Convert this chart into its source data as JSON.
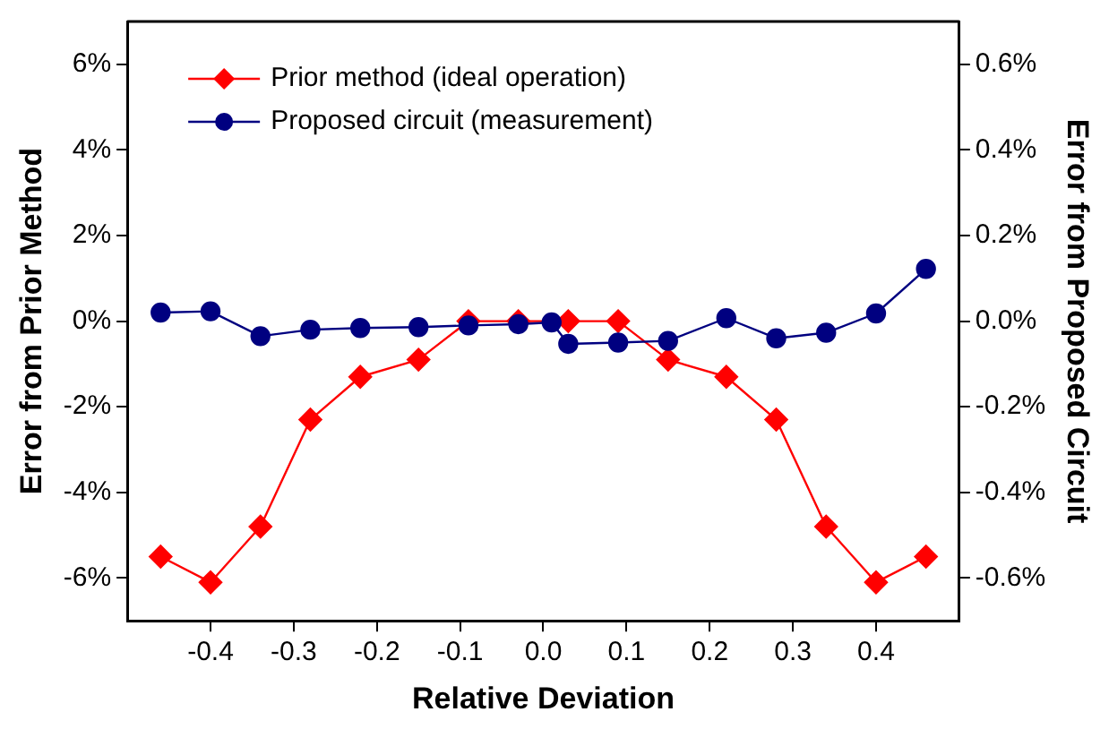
{
  "chart_data": {
    "type": "line",
    "xlabel": "Relative Deviation",
    "ylabel": "Error from Prior Method",
    "y2label": "Error from Proposed Circuit",
    "xlim": [
      -0.5,
      0.5
    ],
    "xticks": [
      -0.4,
      -0.3,
      -0.2,
      -0.1,
      {
        "value": 0,
        "label": "0.0"
      },
      0.1,
      0.2,
      0.3,
      0.4
    ],
    "ylim": [
      -7,
      7
    ],
    "yticks": [
      {
        "value": -6,
        "label": "-6%"
      },
      {
        "value": -4,
        "label": "-4%"
      },
      {
        "value": -2,
        "label": "-2%"
      },
      {
        "value": 0,
        "label": "0%"
      },
      {
        "value": 2,
        "label": "2%"
      },
      {
        "value": 4,
        "label": "4%"
      },
      {
        "value": 6,
        "label": "6%"
      }
    ],
    "y2lim": [
      -0.7,
      0.7
    ],
    "y2ticks": [
      {
        "value": -0.6,
        "label": "-0.6%"
      },
      {
        "value": -0.4,
        "label": "-0.4%"
      },
      {
        "value": -0.2,
        "label": "-0.2%"
      },
      {
        "value": 0,
        "label": "0.0%"
      },
      {
        "value": 0.2,
        "label": "0.2%"
      },
      {
        "value": 0.4,
        "label": "0.4%"
      },
      {
        "value": 0.6,
        "label": "0.6%"
      }
    ],
    "grid": false,
    "legend": "top left",
    "series": [
      {
        "name": "Prior method (ideal operation)",
        "color": "#ff0000",
        "marker": "diamond",
        "x": [
          -0.46,
          -0.4,
          -0.34,
          -0.28,
          -0.22,
          -0.15,
          -0.09,
          -0.03,
          0.03,
          0.09,
          0.15,
          0.22,
          0.28,
          0.34,
          0.4,
          0.46
        ],
        "values": [
          -5.5,
          -6.1,
          -4.8,
          -2.3,
          -1.3,
          -0.9,
          0,
          0,
          0,
          0,
          -0.9,
          -1.3,
          -2.3,
          -4.8,
          -6.1,
          -5.5
        ]
      },
      {
        "name": "Proposed circuit (measurement)",
        "color": "#000080",
        "marker": "circle",
        "axis": "y2",
        "x": [
          -0.46,
          -0.4,
          -0.34,
          -0.28,
          -0.22,
          -0.15,
          -0.09,
          -0.03,
          0.01,
          0.03,
          0.09,
          0.15,
          0.22,
          0.28,
          0.34,
          0.4,
          0.46
        ],
        "values": [
          0.02,
          0.023,
          -0.035,
          -0.02,
          -0.016,
          -0.014,
          -0.01,
          -0.007,
          -0.003,
          -0.053,
          -0.05,
          -0.046,
          0.007,
          -0.04,
          -0.027,
          0.018,
          0.122
        ]
      }
    ]
  }
}
